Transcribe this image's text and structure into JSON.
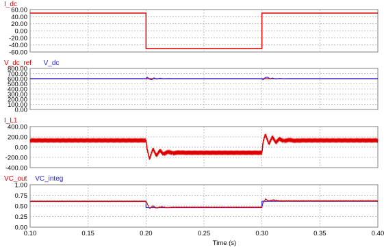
{
  "chart_data": [
    {
      "type": "line",
      "legend": [
        {
          "name": "I_dc",
          "color": "#dd0000"
        }
      ],
      "ylim": [
        -60,
        60
      ],
      "yticks": [
        "-60.00",
        "-40.00",
        "-20.00",
        "0.00",
        "20.00",
        "40.00",
        "60.00"
      ],
      "ytick_values": [
        -60,
        -40,
        -20,
        0,
        20,
        40,
        60
      ],
      "grid": true,
      "series": [
        {
          "name": "I_dc",
          "color": "#dd0000",
          "x": [
            0.1,
            0.2,
            0.2,
            0.3,
            0.3,
            0.4
          ],
          "y": [
            50,
            50,
            -50,
            -50,
            50,
            50
          ]
        }
      ]
    },
    {
      "type": "line",
      "legend": [
        {
          "name": "V_dc_ref",
          "color": "#dd0000"
        },
        {
          "name": "V_dc",
          "color": "#2222dd"
        }
      ],
      "ylim": [
        0,
        800
      ],
      "yticks": [
        "0.00",
        "100.00",
        "200.00",
        "300.00",
        "400.00",
        "500.00",
        "600.00",
        "700.00",
        "800.00"
      ],
      "ytick_values": [
        0,
        100,
        200,
        300,
        400,
        500,
        600,
        700,
        800
      ],
      "grid": true,
      "series": [
        {
          "name": "V_dc_ref",
          "color": "#dd0000",
          "x": [
            0.1,
            0.4
          ],
          "y": [
            600,
            600
          ]
        },
        {
          "name": "V_dc",
          "color": "#2222dd",
          "x": [
            0.1,
            0.2,
            0.201,
            0.203,
            0.205,
            0.207,
            0.209,
            0.212,
            0.215,
            0.219,
            0.223,
            0.3,
            0.301,
            0.303,
            0.305,
            0.307,
            0.309,
            0.312,
            0.315,
            0.319,
            0.323,
            0.4
          ],
          "y": [
            600,
            600,
            630,
            590,
            580,
            615,
            592,
            608,
            598,
            602,
            600,
            600,
            580,
            622,
            630,
            596,
            612,
            594,
            604,
            599,
            600,
            600
          ]
        }
      ]
    },
    {
      "type": "line",
      "legend": [
        {
          "name": "I_L1",
          "color": "#dd0000"
        }
      ],
      "ylim": [
        -400,
        400
      ],
      "yticks": [
        "-400.00",
        "-200.00",
        "0.00",
        "200.00",
        "400.00"
      ],
      "ytick_values": [
        -400,
        -200,
        0,
        200,
        400
      ],
      "grid": true,
      "series": [
        {
          "name": "I_L1",
          "color": "#dd0000",
          "x": [
            0.1,
            0.2,
            0.201,
            0.203,
            0.206,
            0.209,
            0.212,
            0.215,
            0.219,
            0.223,
            0.228,
            0.235,
            0.3,
            0.301,
            0.303,
            0.306,
            0.309,
            0.312,
            0.315,
            0.319,
            0.323,
            0.328,
            0.335,
            0.4
          ],
          "y": [
            130,
            130,
            -40,
            -230,
            -30,
            -170,
            -60,
            -140,
            -90,
            -120,
            -105,
            -110,
            -110,
            100,
            250,
            60,
            200,
            90,
            160,
            115,
            140,
            125,
            130,
            130
          ],
          "band": 14
        }
      ]
    },
    {
      "type": "line",
      "legend": [
        {
          "name": "VC_out",
          "color": "#dd0000"
        },
        {
          "name": "VC_integ",
          "color": "#2222dd"
        }
      ],
      "ylim": [
        0,
        1
      ],
      "yticks": [
        "0.00",
        "0.25",
        "0.50",
        "0.75",
        "1.00"
      ],
      "ytick_values": [
        0,
        0.25,
        0.5,
        0.75,
        1.0
      ],
      "grid": true,
      "series": [
        {
          "name": "VC_integ",
          "color": "#2222dd",
          "x": [
            0.1,
            0.2,
            0.2,
            0.3,
            0.3,
            0.4
          ],
          "y": [
            0.61,
            0.61,
            0.46,
            0.46,
            0.61,
            0.61
          ]
        },
        {
          "name": "VC_out",
          "color": "#dd0000",
          "x": [
            0.1,
            0.2,
            0.201,
            0.203,
            0.206,
            0.209,
            0.213,
            0.218,
            0.223,
            0.3,
            0.301,
            0.303,
            0.306,
            0.31,
            0.315,
            0.32,
            0.4
          ],
          "y": [
            0.61,
            0.61,
            0.56,
            0.44,
            0.5,
            0.45,
            0.48,
            0.46,
            0.47,
            0.47,
            0.58,
            0.66,
            0.62,
            0.64,
            0.62,
            0.62,
            0.62
          ],
          "noise": 0.008
        }
      ]
    }
  ],
  "xaxis": {
    "xlim": [
      0.1,
      0.4
    ],
    "xticks": [
      "0.10",
      "0.15",
      "0.20",
      "0.25",
      "0.30",
      "0.35",
      "0.40"
    ],
    "xtick_values": [
      0.1,
      0.15,
      0.2,
      0.25,
      0.3,
      0.35,
      0.4
    ],
    "xlabel": "Time (s)"
  }
}
